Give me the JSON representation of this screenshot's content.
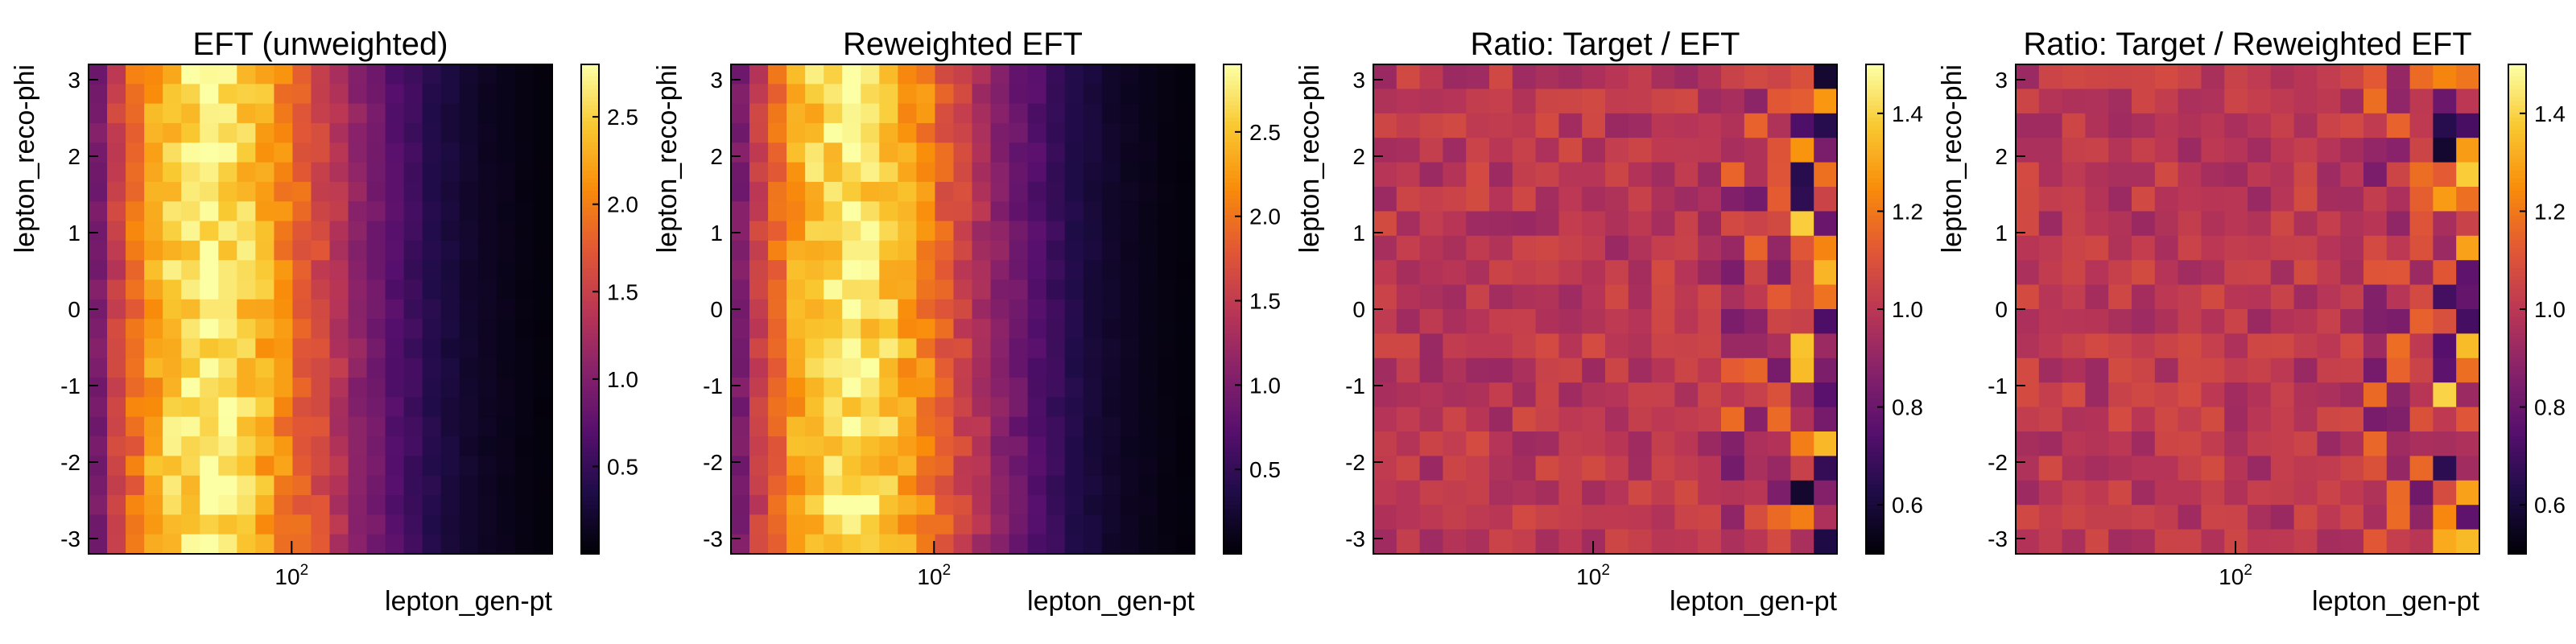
{
  "chart_data": [
    {
      "type": "heatmap",
      "title": "EFT (unweighted)",
      "xlabel": "lepton_gen-pt",
      "ylabel": "lepton_reco-phi",
      "xscale": "log",
      "x_tick_labels": [
        "10^2"
      ],
      "y_tick_labels": [
        "3",
        "2",
        "1",
        "0",
        "-1",
        "-2",
        "-3"
      ],
      "ylim": [
        -3.2,
        3.2
      ],
      "colorbar": {
        "min": 0.0,
        "max": 2.8,
        "ticks": [
          "2.5",
          "2.0",
          "1.5",
          "1.0",
          "0.5"
        ],
        "colormap": "inferno"
      },
      "grid": {
        "nx": 25,
        "ny": 25
      },
      "profile_x": [
        0.95,
        1.5,
        1.9,
        2.25,
        2.5,
        2.6,
        2.7,
        2.6,
        2.5,
        2.3,
        2.05,
        1.8,
        1.6,
        1.35,
        1.1,
        0.9,
        0.7,
        0.55,
        0.4,
        0.3,
        0.22,
        0.16,
        0.12,
        0.08,
        0.05
      ]
    },
    {
      "type": "heatmap",
      "title": "Reweighted EFT",
      "xlabel": "lepton_gen-pt",
      "ylabel": "lepton_reco-phi",
      "xscale": "log",
      "x_tick_labels": [
        "10^2"
      ],
      "y_tick_labels": [
        "3",
        "2",
        "1",
        "0",
        "-1",
        "-2",
        "-3"
      ],
      "ylim": [
        -3.2,
        3.2
      ],
      "colorbar": {
        "min": 0.0,
        "max": 2.9,
        "ticks": [
          "2.5",
          "2.0",
          "1.5",
          "1.0",
          "0.5"
        ],
        "colormap": "inferno"
      },
      "grid": {
        "nx": 25,
        "ny": 25
      },
      "profile_x": [
        1.0,
        1.55,
        1.95,
        2.3,
        2.55,
        2.65,
        2.75,
        2.65,
        2.55,
        2.35,
        2.1,
        1.85,
        1.6,
        1.35,
        1.1,
        0.9,
        0.7,
        0.55,
        0.4,
        0.3,
        0.22,
        0.16,
        0.12,
        0.08,
        0.05
      ]
    },
    {
      "type": "heatmap",
      "title": "Ratio: Target / EFT",
      "xlabel": "lepton_gen-pt",
      "ylabel": "lepton_reco-phi",
      "xscale": "log",
      "x_tick_labels": [
        "10^2"
      ],
      "y_tick_labels": [
        "3",
        "2",
        "1",
        "0",
        "-1",
        "-2",
        "-3"
      ],
      "ylim": [
        -3.2,
        3.2
      ],
      "colorbar": {
        "min": 0.5,
        "max": 1.5,
        "ticks": [
          "1.4",
          "1.2",
          "1.0",
          "0.8",
          "0.6"
        ],
        "colormap": "inferno"
      },
      "grid": {
        "nx": 20,
        "ny": 20
      },
      "typical_value": 1.0
    },
    {
      "type": "heatmap",
      "title": "Ratio: Target / Reweighted EFT",
      "xlabel": "lepton_gen-pt",
      "ylabel": "lepton_reco-phi",
      "xscale": "log",
      "x_tick_labels": [
        "10^2"
      ],
      "y_tick_labels": [
        "3",
        "2",
        "1",
        "0",
        "-1",
        "-2",
        "-3"
      ],
      "ylim": [
        -3.2,
        3.2
      ],
      "colorbar": {
        "min": 0.5,
        "max": 1.5,
        "ticks": [
          "1.4",
          "1.2",
          "1.0",
          "0.8",
          "0.6"
        ],
        "colormap": "inferno"
      },
      "grid": {
        "nx": 20,
        "ny": 20
      },
      "typical_value": 1.0
    }
  ]
}
